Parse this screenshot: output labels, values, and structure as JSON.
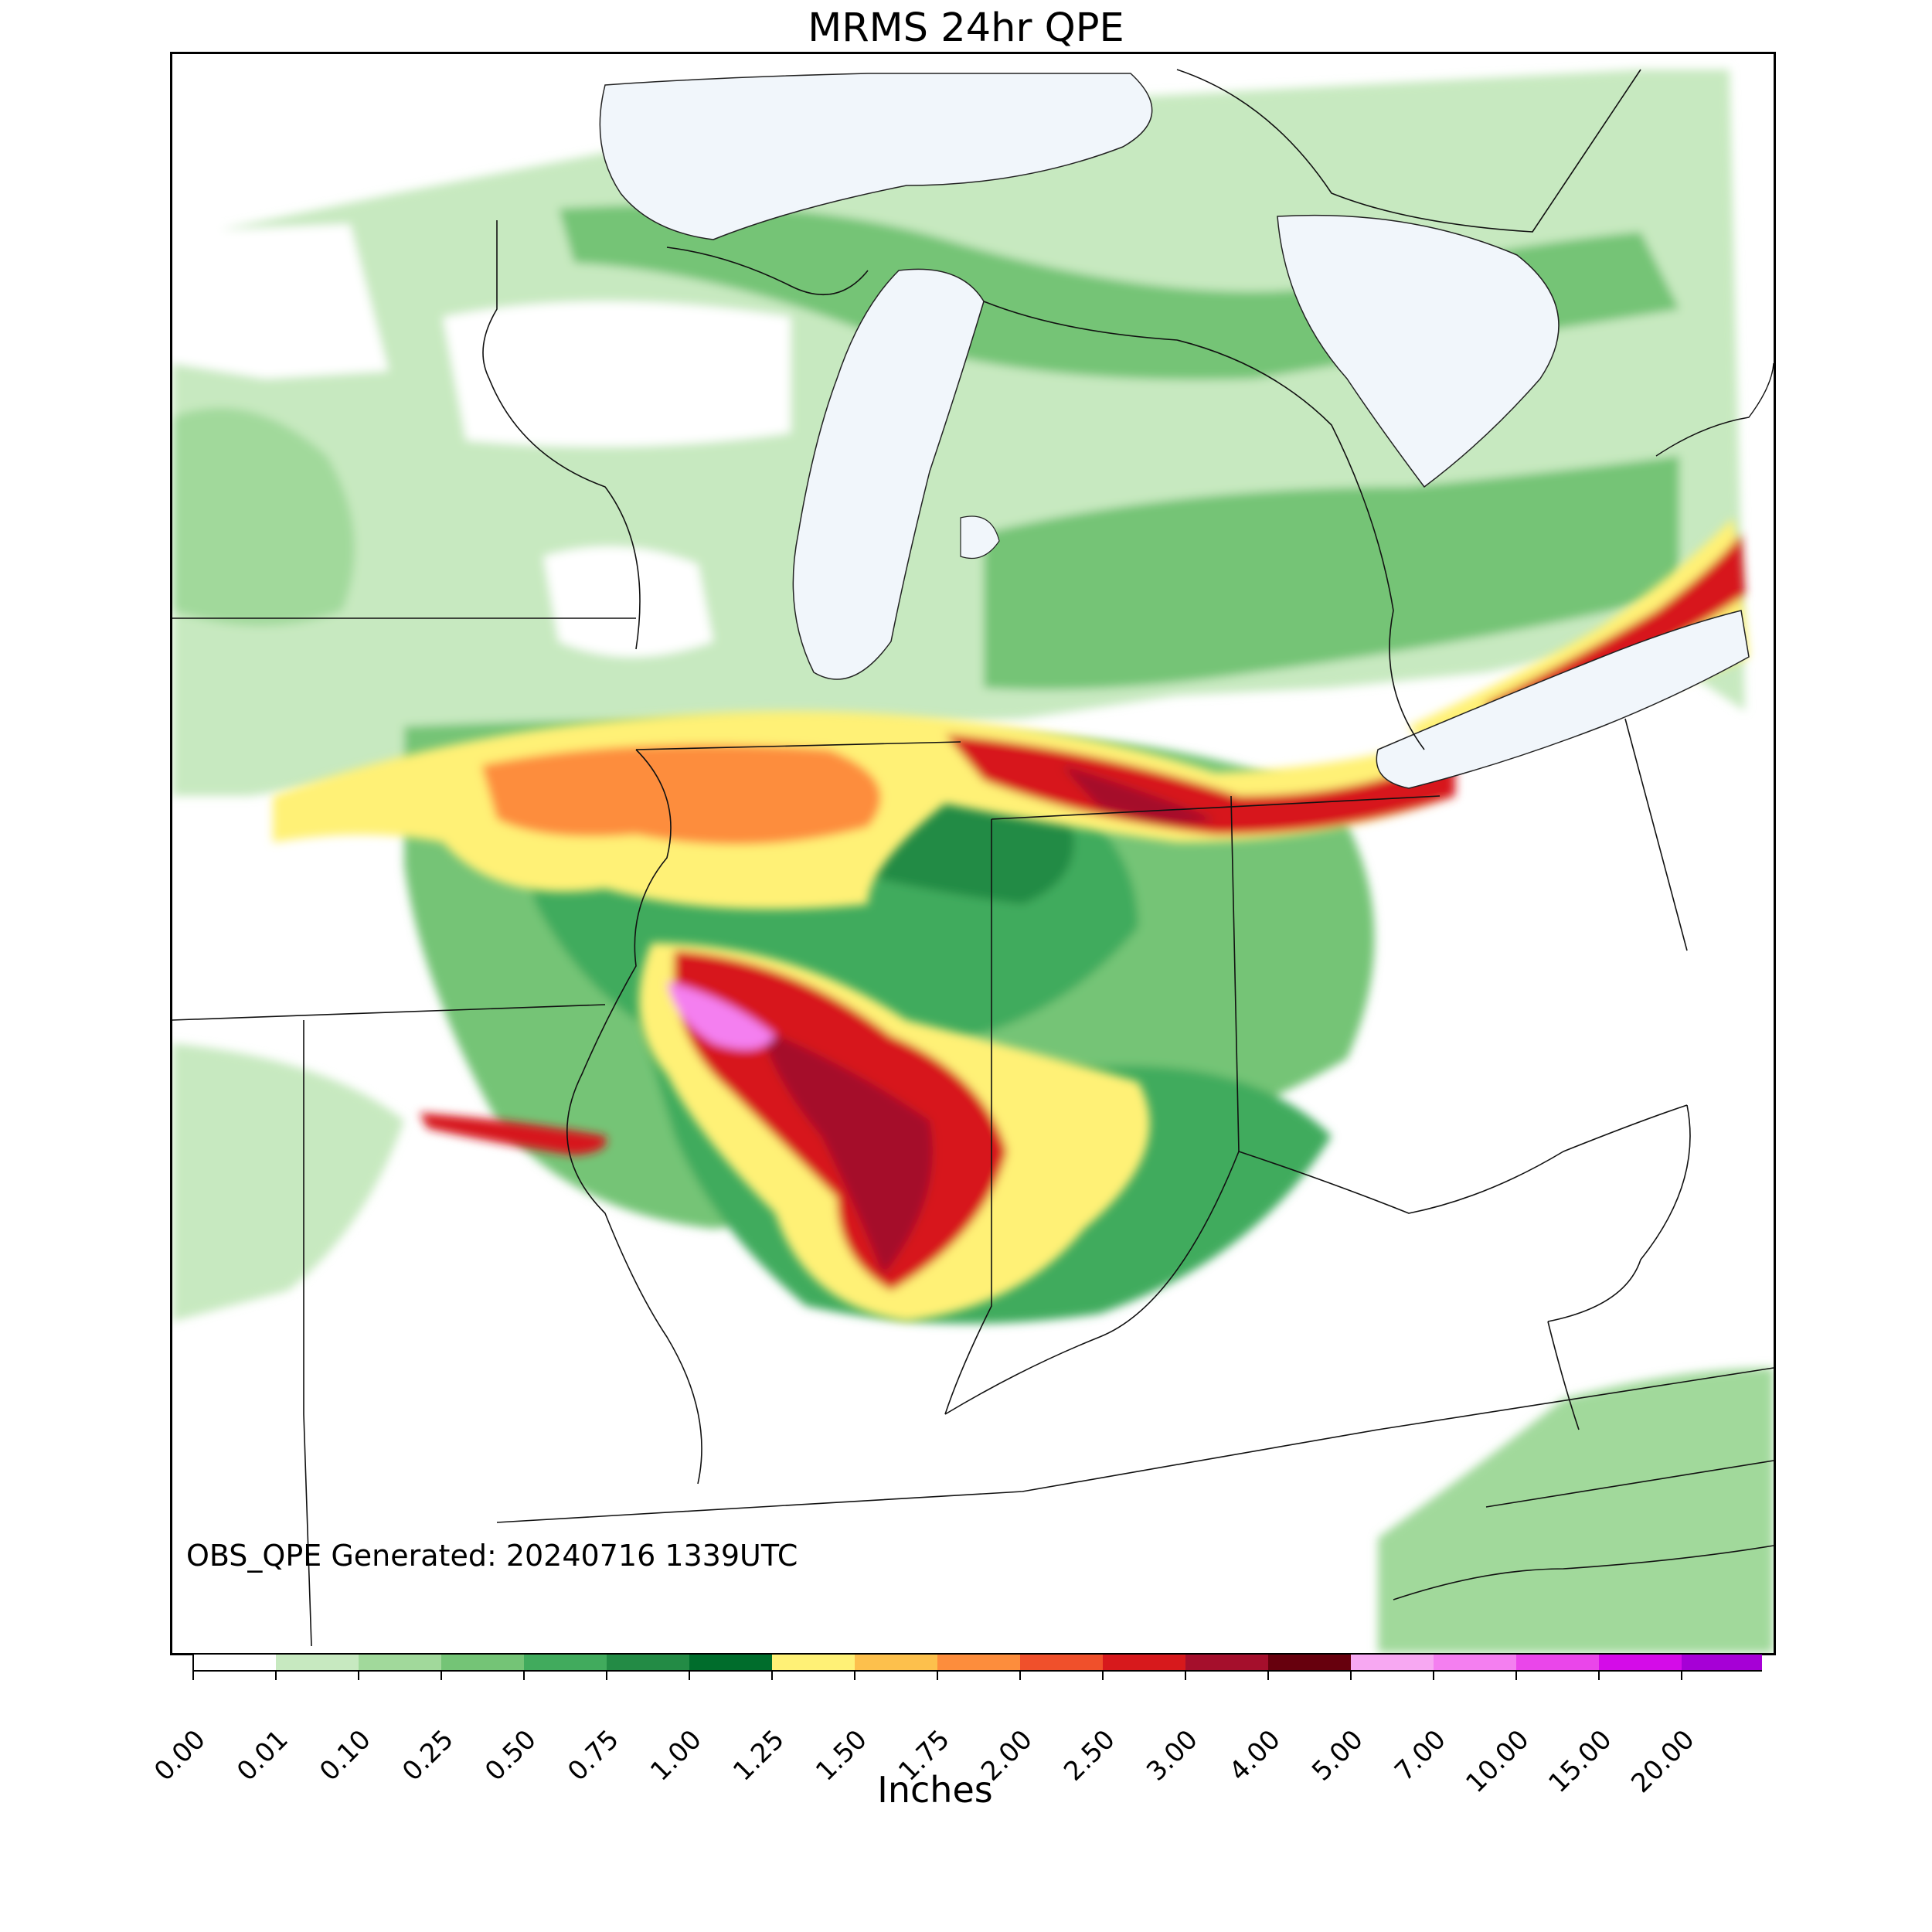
{
  "title": "MRMS 24hr QPE",
  "stamp": "OBS_QPE Generated: 20240716 1339UTC",
  "colorbar": {
    "label": "Inches",
    "ticks": [
      "0.00",
      "0.01",
      "0.10",
      "0.25",
      "0.50",
      "0.75",
      "1.00",
      "1.25",
      "1.50",
      "1.75",
      "2.00",
      "2.50",
      "3.00",
      "4.00",
      "5.00",
      "7.00",
      "10.00",
      "15.00",
      "20.00"
    ],
    "colors": [
      "#ffffff",
      "#c7e9c0",
      "#a1d99b",
      "#74c476",
      "#41ab5d",
      "#238b45",
      "#006d2c",
      "#fff176",
      "#fdc04c",
      "#fd8d3c",
      "#f0502b",
      "#d7191c",
      "#a50f2c",
      "#67000d",
      "#f7a8f2",
      "#f47ff0",
      "#ea46ea",
      "#d40ce8",
      "#a600d6",
      "#7a00c4"
    ],
    "extend_color": "#7a00c4"
  },
  "legend_categories": {
    "light": "#c7e9c0",
    "mid": "#74c476",
    "heavy_green": "#238b45",
    "yellow": "#fff176",
    "orange": "#fd8d3c",
    "red": "#d7191c",
    "darkred": "#a50f2c",
    "pink": "#f47ff0"
  }
}
